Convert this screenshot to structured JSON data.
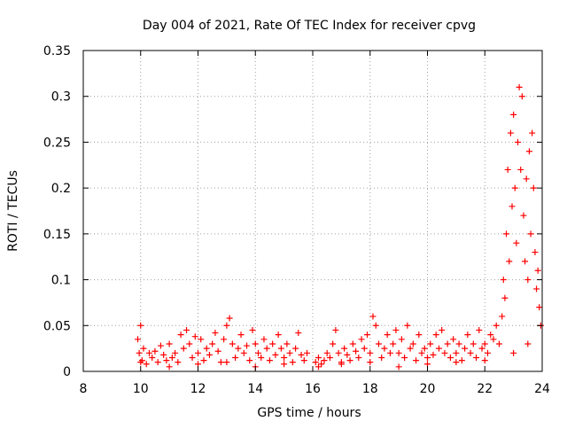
{
  "chart_data": {
    "type": "scatter",
    "title": "Day 004 of 2021, Rate Of TEC Index for receiver cpvg",
    "xlabel": "GPS time / hours",
    "ylabel": "ROTI / TECUs",
    "xlim": [
      8,
      24
    ],
    "ylim": [
      0,
      0.35
    ],
    "xticks": [
      "8",
      "10",
      "12",
      "14",
      "16",
      "18",
      "20",
      "22",
      "24"
    ],
    "yticks": [
      "0",
      "0.05",
      "0.1",
      "0.15",
      "0.2",
      "0.25",
      "0.3",
      "0.35"
    ],
    "grid": true,
    "marker": "+",
    "series_color": "#ff0000",
    "points": [
      [
        9.9,
        0.035
      ],
      [
        9.95,
        0.02
      ],
      [
        10.0,
        0.05
      ],
      [
        10.05,
        0.012
      ],
      [
        10.1,
        0.025
      ],
      [
        10.2,
        0.008
      ],
      [
        10.3,
        0.02
      ],
      [
        10.4,
        0.015
      ],
      [
        10.5,
        0.022
      ],
      [
        10.6,
        0.01
      ],
      [
        10.7,
        0.028
      ],
      [
        10.8,
        0.018
      ],
      [
        10.9,
        0.012
      ],
      [
        11.0,
        0.03
      ],
      [
        11.1,
        0.015
      ],
      [
        11.2,
        0.02
      ],
      [
        11.3,
        0.01
      ],
      [
        11.4,
        0.04
      ],
      [
        11.5,
        0.025
      ],
      [
        11.6,
        0.045
      ],
      [
        11.7,
        0.03
      ],
      [
        11.8,
        0.015
      ],
      [
        11.9,
        0.038
      ],
      [
        12.0,
        0.02
      ],
      [
        12.1,
        0.035
      ],
      [
        12.2,
        0.012
      ],
      [
        12.3,
        0.025
      ],
      [
        12.4,
        0.018
      ],
      [
        12.5,
        0.03
      ],
      [
        12.6,
        0.042
      ],
      [
        12.7,
        0.022
      ],
      [
        12.8,
        0.01
      ],
      [
        12.9,
        0.035
      ],
      [
        13.0,
        0.05
      ],
      [
        13.1,
        0.058
      ],
      [
        13.2,
        0.03
      ],
      [
        13.3,
        0.015
      ],
      [
        13.4,
        0.025
      ],
      [
        13.5,
        0.04
      ],
      [
        13.6,
        0.02
      ],
      [
        13.7,
        0.028
      ],
      [
        13.8,
        0.012
      ],
      [
        13.9,
        0.045
      ],
      [
        14.0,
        0.03
      ],
      [
        14.1,
        0.02
      ],
      [
        14.2,
        0.015
      ],
      [
        14.3,
        0.035
      ],
      [
        14.4,
        0.025
      ],
      [
        14.5,
        0.012
      ],
      [
        14.6,
        0.03
      ],
      [
        14.7,
        0.018
      ],
      [
        14.8,
        0.04
      ],
      [
        14.9,
        0.025
      ],
      [
        15.0,
        0.015
      ],
      [
        15.1,
        0.03
      ],
      [
        15.2,
        0.02
      ],
      [
        15.3,
        0.01
      ],
      [
        15.4,
        0.025
      ],
      [
        15.5,
        0.042
      ],
      [
        15.6,
        0.018
      ],
      [
        15.7,
        0.012
      ],
      [
        15.8,
        0.02
      ],
      [
        16.1,
        0.01
      ],
      [
        16.2,
        0.015
      ],
      [
        16.3,
        0.008
      ],
      [
        16.4,
        0.012
      ],
      [
        16.5,
        0.02
      ],
      [
        16.6,
        0.015
      ],
      [
        16.7,
        0.03
      ],
      [
        16.8,
        0.045
      ],
      [
        16.9,
        0.02
      ],
      [
        17.0,
        0.01
      ],
      [
        17.1,
        0.025
      ],
      [
        17.2,
        0.018
      ],
      [
        17.3,
        0.012
      ],
      [
        17.4,
        0.03
      ],
      [
        17.5,
        0.022
      ],
      [
        17.6,
        0.015
      ],
      [
        17.7,
        0.035
      ],
      [
        17.8,
        0.025
      ],
      [
        17.9,
        0.04
      ],
      [
        18.0,
        0.02
      ],
      [
        18.1,
        0.06
      ],
      [
        18.2,
        0.05
      ],
      [
        18.3,
        0.03
      ],
      [
        18.4,
        0.015
      ],
      [
        18.5,
        0.025
      ],
      [
        18.6,
        0.04
      ],
      [
        18.7,
        0.02
      ],
      [
        18.8,
        0.03
      ],
      [
        18.9,
        0.045
      ],
      [
        19.0,
        0.02
      ],
      [
        19.1,
        0.035
      ],
      [
        19.2,
        0.015
      ],
      [
        19.3,
        0.05
      ],
      [
        19.4,
        0.025
      ],
      [
        19.5,
        0.03
      ],
      [
        19.6,
        0.012
      ],
      [
        19.7,
        0.04
      ],
      [
        19.8,
        0.02
      ],
      [
        19.9,
        0.025
      ],
      [
        20.0,
        0.015
      ],
      [
        20.1,
        0.03
      ],
      [
        20.2,
        0.018
      ],
      [
        20.3,
        0.04
      ],
      [
        20.4,
        0.025
      ],
      [
        20.5,
        0.045
      ],
      [
        20.6,
        0.02
      ],
      [
        20.7,
        0.03
      ],
      [
        20.8,
        0.015
      ],
      [
        20.9,
        0.035
      ],
      [
        21.0,
        0.02
      ],
      [
        21.1,
        0.03
      ],
      [
        21.2,
        0.012
      ],
      [
        21.3,
        0.025
      ],
      [
        21.4,
        0.04
      ],
      [
        21.5,
        0.02
      ],
      [
        21.6,
        0.03
      ],
      [
        21.7,
        0.015
      ],
      [
        21.8,
        0.045
      ],
      [
        21.9,
        0.025
      ],
      [
        22.0,
        0.03
      ],
      [
        22.1,
        0.02
      ],
      [
        22.2,
        0.04
      ],
      [
        22.3,
        0.035
      ],
      [
        22.4,
        0.05
      ],
      [
        22.5,
        0.03
      ],
      [
        22.6,
        0.06
      ],
      [
        22.65,
        0.1
      ],
      [
        22.7,
        0.08
      ],
      [
        22.75,
        0.15
      ],
      [
        22.8,
        0.22
      ],
      [
        22.85,
        0.12
      ],
      [
        22.9,
        0.26
      ],
      [
        22.95,
        0.18
      ],
      [
        23.0,
        0.28
      ],
      [
        23.05,
        0.2
      ],
      [
        23.1,
        0.14
      ],
      [
        23.15,
        0.25
      ],
      [
        23.2,
        0.31
      ],
      [
        23.25,
        0.22
      ],
      [
        23.3,
        0.3
      ],
      [
        23.35,
        0.17
      ],
      [
        23.4,
        0.12
      ],
      [
        23.45,
        0.21
      ],
      [
        23.5,
        0.1
      ],
      [
        23.55,
        0.24
      ],
      [
        23.6,
        0.15
      ],
      [
        23.65,
        0.26
      ],
      [
        23.7,
        0.2
      ],
      [
        23.75,
        0.13
      ],
      [
        23.8,
        0.09
      ],
      [
        23.85,
        0.11
      ],
      [
        23.9,
        0.07
      ],
      [
        23.95,
        0.05
      ],
      [
        10.0,
        0.01
      ],
      [
        11.0,
        0.005
      ],
      [
        12.0,
        0.008
      ],
      [
        13.0,
        0.01
      ],
      [
        14.0,
        0.005
      ],
      [
        15.0,
        0.008
      ],
      [
        16.2,
        0.005
      ],
      [
        17.0,
        0.008
      ],
      [
        18.0,
        0.01
      ],
      [
        19.0,
        0.005
      ],
      [
        20.0,
        0.008
      ],
      [
        21.0,
        0.01
      ],
      [
        22.0,
        0.012
      ],
      [
        23.0,
        0.02
      ],
      [
        23.5,
        0.03
      ]
    ]
  }
}
